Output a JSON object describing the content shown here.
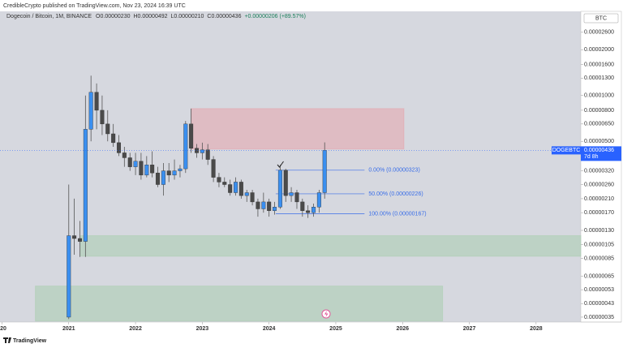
{
  "header": {
    "publisher": "CredibleCrypto published on TradingView.com, Nov 23, 2024 16:39 UTC",
    "footer": "TradingView"
  },
  "chart_data": {
    "type": "candlestick",
    "title": "Dogecoin / Bitcoin, 1M, BINANCE",
    "ohlc_labels": [
      "O0.00000230",
      "H0.00000492",
      "L0.00000210",
      "C0.00000436",
      "+0.00000206 (+89.57%)"
    ],
    "currency": "BTC",
    "log_scale": true,
    "grid": false,
    "up_color": "#3a8ff0",
    "down_color": "#4a4a4a",
    "x": [
      2021,
      2021.083,
      2021.167,
      2021.25,
      2021.333,
      2021.417,
      2021.5,
      2021.583,
      2021.667,
      2021.75,
      2021.833,
      2021.917,
      2022,
      2022.083,
      2022.167,
      2022.25,
      2022.333,
      2022.417,
      2022.5,
      2022.583,
      2022.667,
      2022.75,
      2022.833,
      2022.917,
      2023,
      2023.083,
      2023.167,
      2023.25,
      2023.333,
      2023.417,
      2023.5,
      2023.583,
      2023.667,
      2023.75,
      2023.833,
      2023.917,
      2024,
      2024.083,
      2024.167,
      2024.25,
      2024.333,
      2024.417,
      2024.5,
      2024.583,
      2024.667,
      2024.75,
      2024.833
    ],
    "open": [
      3.5e-07,
      1.2e-06,
      1.15e-06,
      1.1e-06,
      6e-06,
      1.05e-05,
      8e-06,
      6.5e-06,
      5.6e-06,
      4.9e-06,
      4.2e-06,
      3.9e-06,
      3.4e-06,
      3.7e-06,
      3e-06,
      3.5e-06,
      3.1e-06,
      2.6e-06,
      3.2e-06,
      3e-06,
      3.2e-06,
      3.3e-06,
      6.5e-06,
      4.5e-06,
      4.2e-06,
      4.4e-06,
      3.8e-06,
      2.9e-06,
      2.7e-06,
      2.6e-06,
      2.3e-06,
      2.7e-06,
      2.2e-06,
      2.3e-06,
      2e-06,
      1.8e-06,
      2e-06,
      1.75e-06,
      1.85e-06,
      3.23e-06,
      2.2e-06,
      2.3e-06,
      2e-06,
      1.75e-06,
      1.7e-06,
      1.85e-06,
      2.3e-06
    ],
    "high": [
      2.6e-06,
      2.1e-06,
      1.5e-06,
      1e-05,
      1.35e-05,
      1.2e-05,
      1e-05,
      8e-06,
      6.5e-06,
      5.5e-06,
      4.6e-06,
      4.2e-06,
      4.2e-06,
      4.2e-06,
      4e-06,
      4.3e-06,
      3.4e-06,
      3.6e-06,
      3.6e-06,
      3.8e-06,
      3.5e-06,
      6.8e-06,
      8.2e-06,
      4.8e-06,
      4.9e-06,
      4.8e-06,
      4e-06,
      3.1e-06,
      2.9e-06,
      2.8e-06,
      2.9e-06,
      2.8e-06,
      2.4e-06,
      2.4e-06,
      2.1e-06,
      2.3e-06,
      2.1e-06,
      2e-06,
      3.5e-06,
      3.3e-06,
      2.5e-06,
      2.4e-06,
      2.1e-06,
      1.9e-06,
      1.95e-06,
      2.4e-06,
      4.92e-06
    ],
    "low": [
      3.4e-07,
      9e-07,
      8.7e-07,
      8.7e-07,
      5e-06,
      6e-06,
      5.5e-06,
      5e-06,
      4.6e-06,
      4e-06,
      3.4e-06,
      3.2e-06,
      3e-06,
      2.8e-06,
      2.9e-06,
      2.9e-06,
      2.5e-06,
      2.2e-06,
      2.7e-06,
      2.8e-06,
      2.9e-06,
      3.1e-06,
      4.2e-06,
      3.9e-06,
      3.8e-06,
      3.5e-06,
      2.7e-06,
      2.5e-06,
      2.5e-06,
      2.2e-06,
      2.2e-06,
      2.1e-06,
      2e-06,
      1.9e-06,
      1.6e-06,
      1.7e-06,
      1.6e-06,
      1.65e-06,
      1.8e-06,
      2e-06,
      2e-06,
      1.8e-06,
      1.6e-06,
      1.57e-06,
      1.6e-06,
      1.7e-06,
      2.1e-06
    ],
    "close": [
      1.2e-06,
      1.15e-06,
      1.1e-06,
      6e-06,
      1.05e-05,
      8e-06,
      6.5e-06,
      5.6e-06,
      4.9e-06,
      4.2e-06,
      3.9e-06,
      3.4e-06,
      3.7e-06,
      3e-06,
      3.5e-06,
      3.1e-06,
      2.6e-06,
      3.2e-06,
      3e-06,
      3.2e-06,
      3.3e-06,
      6.5e-06,
      4.5e-06,
      4.2e-06,
      4.4e-06,
      3.8e-06,
      2.9e-06,
      2.7e-06,
      2.6e-06,
      2.3e-06,
      2.7e-06,
      2.2e-06,
      2.3e-06,
      2e-06,
      1.8e-06,
      2e-06,
      1.75e-06,
      1.85e-06,
      3.23e-06,
      2.2e-06,
      2.3e-06,
      2e-06,
      1.75e-06,
      1.7e-06,
      1.85e-06,
      2.3e-06,
      4.36e-06
    ],
    "last_price": {
      "symbol": "DOGEBTC",
      "value": 4.36e-06,
      "label": "0.00000436",
      "countdown": "7d 8h",
      "color": "#2962ff"
    },
    "zones": [
      {
        "x": [
          2022.833,
          2026.02
        ],
        "y": [
          4.45e-06,
          8.2e-06
        ],
        "color": "rgba(232,160,168,0.5)"
      },
      {
        "x": [
          2021.18,
          2028.67
        ],
        "y": [
          8.8e-07,
          1.2e-06
        ],
        "color": "rgba(170,205,175,0.55)"
      },
      {
        "x": [
          2020.5,
          2026.6
        ],
        "y": [
          3.3e-07,
          5.6e-07
        ],
        "color": "rgba(170,205,175,0.55)"
      }
    ],
    "fib_levels": [
      {
        "value": 3.23e-06,
        "label": "0.00% (0.00000323)"
      },
      {
        "value": 2.26e-06,
        "label": "50.00% (0.00000226)"
      },
      {
        "value": 1.67e-06,
        "label": "100.00% (0.00000167)"
      }
    ],
    "fib_x": [
      2024.1,
      2025.43
    ],
    "fib_color": "#3a6ee8",
    "xlim": [
      2019.97,
      2028.67
    ],
    "xticks": [
      {
        "value": 2020,
        "label": "20"
      },
      2021,
      2022,
      2023,
      2024,
      2025,
      2026,
      2027,
      2028
    ],
    "ylim": [
      3.25e-07,
      3.57e-05
    ],
    "yticks": [
      {
        "value": 2.6e-05,
        "label": "0.00002600"
      },
      {
        "value": 2e-05,
        "label": "0.00002000"
      },
      {
        "value": 1.6e-05,
        "label": "0.00001600"
      },
      {
        "value": 1.3e-05,
        "label": "0.00001300"
      },
      {
        "value": 1e-05,
        "label": "0.00001000"
      },
      {
        "value": 8e-06,
        "label": "0.00000800"
      },
      {
        "value": 6.5e-06,
        "label": "0.00000650"
      },
      {
        "value": 5e-06,
        "label": "0.00000500"
      },
      {
        "value": 3.2e-06,
        "label": "0.00000320"
      },
      {
        "value": 2.6e-06,
        "label": "0.00000260"
      },
      {
        "value": 2.1e-06,
        "label": "0.00000210"
      },
      {
        "value": 1.7e-06,
        "label": "0.00000170"
      },
      {
        "value": 1.3e-06,
        "label": "0.00000130"
      },
      {
        "value": 1.05e-06,
        "label": "0.00000105"
      },
      {
        "value": 8.5e-07,
        "label": "0.00000085"
      },
      {
        "value": 6.5e-07,
        "label": "0.00000065"
      },
      {
        "value": 5.3e-07,
        "label": "0.00000053"
      },
      {
        "value": 4.3e-07,
        "label": "0.00000043"
      },
      {
        "value": 3.5e-07,
        "label": "0.00000035"
      }
    ]
  }
}
